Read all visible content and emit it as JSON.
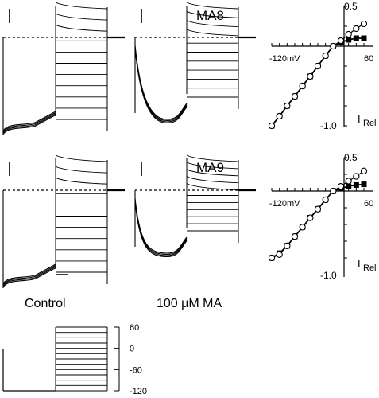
{
  "figure": {
    "cells": [
      {
        "label": "MA8"
      },
      {
        "label": "MA9"
      }
    ],
    "conditions": {
      "control": "Control",
      "drug": "100 μM MA"
    },
    "iv_axis": {
      "top_tick": "0.5",
      "bottom_tick": "-1.0",
      "voltage_label": "-120mV",
      "voltage_right": "60",
      "ylabel_main": "I",
      "ylabel_sub": "Rel"
    },
    "protocol": {
      "labels": [
        "60",
        "0",
        "-60",
        "-120"
      ]
    },
    "icons": [
      "scale-bar",
      "dashed-zero-line"
    ]
  },
  "chart_data": [
    {
      "type": "line",
      "panel": "MA8 normalized I-V",
      "x": [
        -120,
        -105,
        -90,
        -75,
        -60,
        -45,
        -30,
        -15,
        0,
        15,
        30,
        45,
        60
      ],
      "xlim": [
        -120,
        60
      ],
      "ylim": [
        -1.0,
        0.5
      ],
      "xlabel": "-120mV",
      "ylabel": "I Rel",
      "series": [
        {
          "marker": "filled-square",
          "values": [
            -1.0,
            -0.88,
            -0.75,
            -0.63,
            -0.5,
            -0.38,
            -0.25,
            -0.12,
            0.0,
            0.05,
            0.08,
            0.1,
            0.1
          ]
        },
        {
          "marker": "open-circle",
          "values": [
            -1.0,
            -0.88,
            -0.75,
            -0.63,
            -0.5,
            -0.38,
            -0.25,
            -0.12,
            0.0,
            0.07,
            0.15,
            0.22,
            0.28
          ]
        }
      ]
    },
    {
      "type": "line",
      "panel": "MA9 normalized I-V",
      "x": [
        -120,
        -105,
        -90,
        -75,
        -60,
        -45,
        -30,
        -15,
        0,
        15,
        30,
        45,
        60
      ],
      "xlim": [
        -120,
        60
      ],
      "ylim": [
        -1.0,
        0.5
      ],
      "xlabel": "-120mV",
      "ylabel": "I Rel",
      "series": [
        {
          "marker": "filled-square",
          "values": [
            -1.0,
            -0.93,
            -0.82,
            -0.68,
            -0.54,
            -0.4,
            -0.27,
            -0.13,
            0.0,
            0.04,
            0.07,
            0.09,
            0.1
          ]
        },
        {
          "marker": "open-circle",
          "values": [
            -1.0,
            -0.95,
            -0.82,
            -0.68,
            -0.54,
            -0.4,
            -0.27,
            -0.13,
            0.0,
            0.07,
            0.15,
            0.22,
            0.3
          ]
        }
      ]
    }
  ]
}
